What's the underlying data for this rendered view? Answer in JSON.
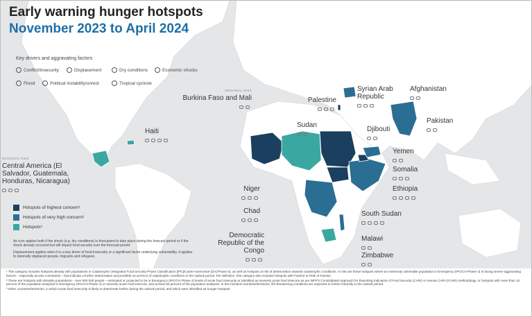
{
  "header": {
    "title": "Early warning hunger hotspots",
    "subtitle": "November 2023 to April 2024"
  },
  "drivers": {
    "title": "Key drivers and aggravating factors",
    "items": [
      "Conflict/insecurity",
      "Displacement",
      "Dry conditions",
      "Economic shocks",
      "Flood",
      "Political instability/unrest",
      "Tropical cyclone"
    ]
  },
  "hotspot_legend": [
    "Hotspots of highest concern¹",
    "Hotspots of very high concern²",
    "Hotspots³"
  ],
  "notes": [
    "An icon applies both if the shock (e.g. dry conditions) is forecasted to take place during the forecast period or if the shock already occurred but will impact food security over the forecast period.",
    "Displacement applies when it is a key driver of food insecurity or a significant factor underlying vulnerability. It applies to internally displaced people, migrants and refugees."
  ],
  "countries": [
    {
      "name": "Burkina Faso and Mali",
      "note": "REGIONAL RISK"
    },
    {
      "name": "Palestine"
    },
    {
      "name": "Syrian Arab Republic"
    },
    {
      "name": "Afghanistan"
    },
    {
      "name": "Pakistan"
    },
    {
      "name": "Haiti"
    },
    {
      "name": "Sudan"
    },
    {
      "name": "Djibouti"
    },
    {
      "name": "Yemen"
    },
    {
      "name": "Somalia"
    },
    {
      "name": "Ethiopia"
    },
    {
      "name": "Central America (El Salvador, Guatemala, Honduras, Nicaragua)",
      "note": "REGIONAL RISK"
    },
    {
      "name": "Niger"
    },
    {
      "name": "Chad"
    },
    {
      "name": "South Sudan"
    },
    {
      "name": "Democratic Republic of the Congo"
    },
    {
      "name": "Malawi"
    },
    {
      "name": "Zimbabwe"
    }
  ],
  "footnotes": [
    "¹ This category includes hotspots already with populations in Catastrophe (Integrated Food Security Phase Classification [IPC]/Cadre Harmonisé [CH] Phase 5), as well as hotspots at risk of deterioration towards catastrophic conditions. At risk are those hotspots where an extremely vulnerable population in Emergency (IPC/CH Phase 4) is facing severe aggravating factors – especially access constraints – that indicate a further deterioration and possible occurrence of catastrophic conditions in the outlook period. Per definition, this category also includes hotspots with Famine or Risk of Famine.",
    "² These are hotspots with sizeable populations – over 500 000 people – estimated or projected to be in Emergency (IPC/CH Phase 4) levels of acute food insecurity or identified as severely acute food insecure as per WFP's Consolidated Approach for Reporting Indicators of Food Security (CARI) or remote CARI (rCARI) methodology, or hotspots with more than 10 percent of the population analysed in Emergency (IPC/CH Phase 4) or severely acute food insecure, and at least 50 percent of the population analysed. In the included countries/territories, life-threatening conditions are expected to further intensify in the outlook period.",
    "³ Other countries/territories, in which acute food insecurity is likely to deteriorate further during the outlook period, and which were identified as hunger hotspots."
  ]
}
